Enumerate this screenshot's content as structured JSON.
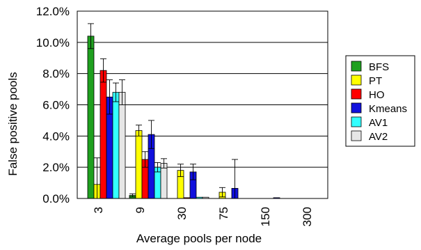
{
  "chart_data": {
    "type": "bar",
    "title": "",
    "xlabel": "Average pools per node",
    "ylabel": "False positive pools",
    "ylim": [
      0,
      12
    ],
    "y_ticks": [
      "0.0%",
      "2.0%",
      "4.0%",
      "6.0%",
      "8.0%",
      "10.0%",
      "12.0%"
    ],
    "grid": "horizontal",
    "legend_position": "right",
    "categories": [
      "3",
      "9",
      "30",
      "75",
      "150",
      "300"
    ],
    "series": [
      {
        "name": "BFS",
        "color": "#1fa01f",
        "values": [
          10.4,
          0.2,
          0,
          0,
          0,
          0
        ],
        "errors": [
          0.8,
          0.1,
          0,
          0,
          0,
          0
        ]
      },
      {
        "name": "PT",
        "color": "#ffff00",
        "values": [
          0.9,
          4.35,
          1.8,
          0.4,
          0,
          0
        ],
        "errors": [
          1.7,
          0.35,
          0.4,
          0.3,
          0,
          0
        ]
      },
      {
        "name": "HO",
        "color": "#ff0000",
        "values": [
          8.2,
          2.5,
          0.05,
          0,
          0,
          0
        ],
        "errors": [
          0.75,
          0.5,
          0,
          0,
          0,
          0
        ]
      },
      {
        "name": "Kmeans",
        "color": "#1010dd",
        "values": [
          6.5,
          4.1,
          1.7,
          0.65,
          0.05,
          0
        ],
        "errors": [
          1.1,
          0.9,
          0.5,
          1.85,
          0,
          0
        ]
      },
      {
        "name": "AV1",
        "color": "#33ffff",
        "values": [
          6.8,
          2.0,
          0.08,
          0,
          0,
          0
        ],
        "errors": [
          0.6,
          0.3,
          0,
          0,
          0,
          0
        ]
      },
      {
        "name": "AV2",
        "color": "#e6e6e6",
        "values": [
          6.8,
          2.25,
          0.08,
          0,
          0,
          0
        ],
        "errors": [
          0.8,
          0.3,
          0,
          0,
          0,
          0
        ]
      }
    ]
  }
}
